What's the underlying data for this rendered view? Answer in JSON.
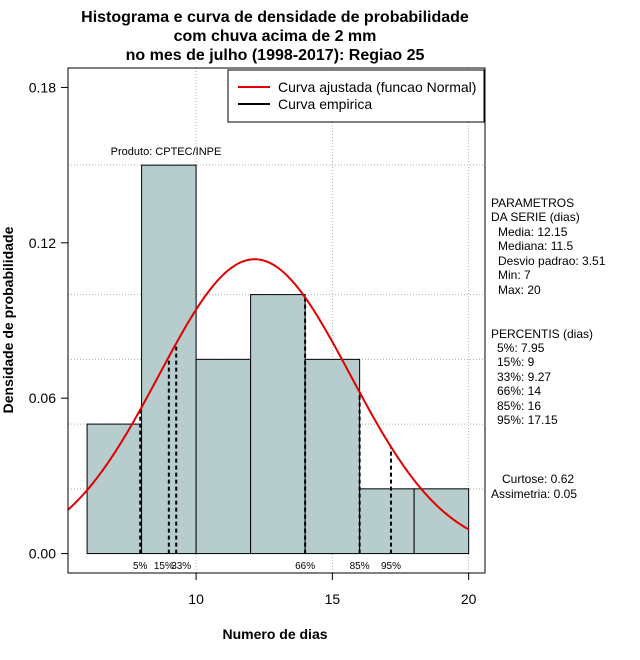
{
  "chart_data": {
    "type": "histogram",
    "title_lines": [
      "Histograma e curva de densidade de probabilidade",
      "com chuva acima de 2 mm",
      "no mes de julho (1998-2017): Regiao 25"
    ],
    "xlabel": "Numero de dias",
    "ylabel": "Densidade de probabilidade",
    "xlim": [
      5.3,
      20.6
    ],
    "ylim": [
      -0.0075,
      0.1875
    ],
    "x_ticks": [
      10,
      15,
      20
    ],
    "x_tick_labels": [
      "10",
      "15",
      "20"
    ],
    "y_ticks": [
      0.0,
      0.06,
      0.12,
      0.18
    ],
    "y_tick_labels": [
      "0.00",
      "0.06",
      "0.12",
      "0.18"
    ],
    "bins": [
      {
        "x0": 6,
        "x1": 8,
        "density": 0.05
      },
      {
        "x0": 8,
        "x1": 10,
        "density": 0.15
      },
      {
        "x0": 10,
        "x1": 12,
        "density": 0.075
      },
      {
        "x0": 12,
        "x1": 14,
        "density": 0.1
      },
      {
        "x0": 14,
        "x1": 16,
        "density": 0.075
      },
      {
        "x0": 16,
        "x1": 18,
        "density": 0.025
      },
      {
        "x0": 18,
        "x1": 20,
        "density": 0.025
      }
    ],
    "normal_fit": {
      "mean": 12.15,
      "sd": 3.51,
      "x_from": 5.3,
      "x_to": 20.0
    },
    "percentile_lines": [
      {
        "label": "5%",
        "x": 7.95
      },
      {
        "label": "15%",
        "x": 9
      },
      {
        "label": "33%",
        "x": 9.27
      },
      {
        "label": "66%",
        "x": 14
      },
      {
        "label": "85%",
        "x": 16
      },
      {
        "label": "95%",
        "x": 17.15
      }
    ],
    "legend": [
      {
        "label": "Curva ajustada (funcao Normal)",
        "color": "#e00000"
      },
      {
        "label": "Curva empirica",
        "color": "#000000"
      }
    ],
    "legend_position": "top-right",
    "source_note": "Produto: CPTEC/INPE",
    "colors": {
      "bar_fill": "#b7cccc",
      "curve": "#e00000",
      "grid": "#b0b0b0"
    }
  },
  "side_panel": {
    "parametros_title_1": "PARAMETROS",
    "parametros_title_2": "DA SERIE (dias)",
    "parametros": [
      "Media: 12.15",
      "Mediana: 11.5",
      "Desvio padrao: 3.51",
      "Min: 7",
      "Max: 20"
    ],
    "percentis_title": "PERCENTIS (dias)",
    "percentis": [
      "5%: 7.95",
      "15%: 9",
      "33%: 9.27",
      "66%: 14",
      "85%: 16",
      "95%: 17.15"
    ],
    "curtose": "Curtose: 0.62",
    "assimetria": "Assimetria: 0.05"
  }
}
